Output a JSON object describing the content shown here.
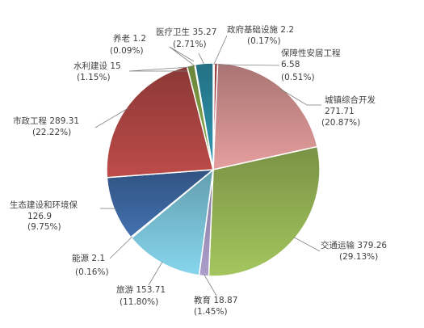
{
  "chart_data": {
    "type": "pie",
    "title": "",
    "unit_note": "",
    "slices": [
      {
        "name": "政府基础设施",
        "value": 2.2,
        "percent": "0.17%",
        "color": "#4f81bd"
      },
      {
        "name": "保障性安居工程",
        "value": 6.58,
        "percent": "0.51%",
        "color": "#c0504d"
      },
      {
        "name": "城镇综合开发",
        "value": 271.71,
        "percent": "20.87%",
        "color": "#d89594"
      },
      {
        "name": "交通运输",
        "value": 379.26,
        "percent": "29.13%",
        "color": "#9bbb59"
      },
      {
        "name": "教育",
        "value": 18.87,
        "percent": "1.45%",
        "color": "#a396c0"
      },
      {
        "name": "旅游",
        "value": 153.71,
        "percent": "11.80%",
        "color": "#7fcae0"
      },
      {
        "name": "能源",
        "value": 2.1,
        "percent": "0.16%",
        "color": "#f5a85a"
      },
      {
        "name": "生态建设和环境保",
        "value": 126.9,
        "percent": "9.75%",
        "color": "#3f6ba6"
      },
      {
        "name": "市政工程",
        "value": 289.31,
        "percent": "22.22%",
        "color": "#b24845"
      },
      {
        "name": "水利建设",
        "value": 15,
        "percent": "1.15%",
        "color": "#87a94b"
      },
      {
        "name": "养老",
        "value": 1.2,
        "percent": "0.09%",
        "color": "#7867a1"
      },
      {
        "name": "医疗卫生",
        "value": 35.27,
        "percent": "2.71%",
        "color": "#2d8fa8"
      }
    ]
  }
}
